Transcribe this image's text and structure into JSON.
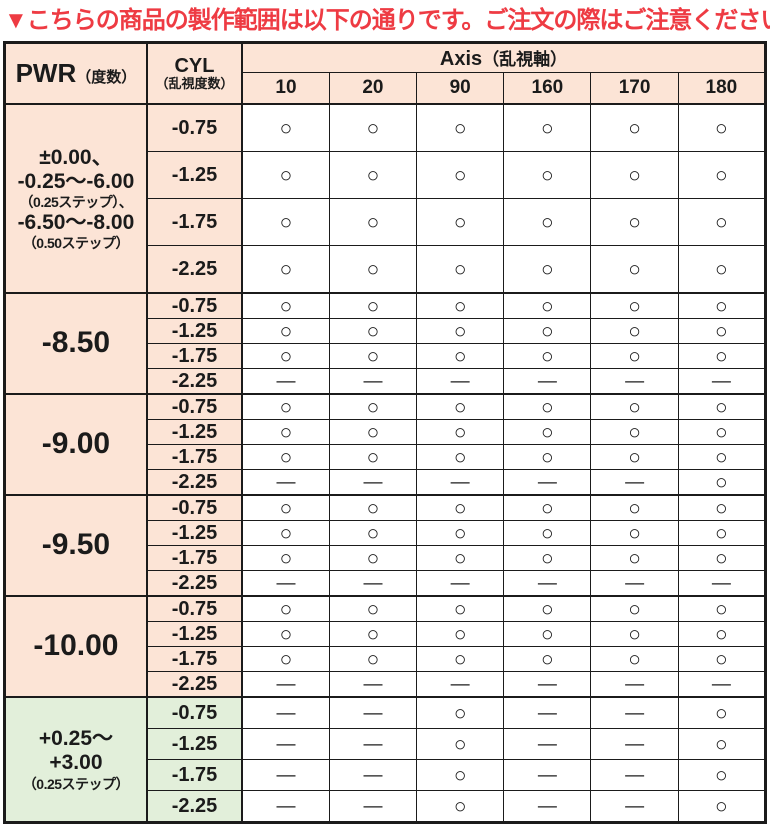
{
  "title": {
    "text": "▼こちらの商品の製作範囲は以下の通りです。ご注文の際はご注意ください。▼"
  },
  "colors": {
    "accent_red": "#ee3b43",
    "header_bg": "#fce4d6",
    "plus_range_bg": "#e2efda",
    "grid": "#1b1b1b"
  },
  "header": {
    "pwr_main": "PWR",
    "pwr_sub": "（度数）",
    "cyl_main": "CYL",
    "cyl_sub": "（乱視度数）",
    "axis_main": "Axis",
    "axis_sub": "（乱視軸）",
    "axis_values": [
      "10",
      "20",
      "90",
      "160",
      "170",
      "180"
    ]
  },
  "legend": {
    "available_symbol": "○",
    "unavailable_symbol": "—"
  },
  "sections": [
    {
      "theme": "peach",
      "size": "tall",
      "big": false,
      "pwr_lines": [
        {
          "text": "±0.00、",
          "small": false
        },
        {
          "text": "-0.25～-6.00",
          "small": false
        },
        {
          "text": "（0.25ステップ）、",
          "small": true
        },
        {
          "text": "-6.50～-8.00",
          "small": false
        },
        {
          "text": "（0.50ステップ）",
          "small": true
        }
      ],
      "rows": [
        {
          "cyl": "-0.75",
          "axes": [
            "○",
            "○",
            "○",
            "○",
            "○",
            "○"
          ]
        },
        {
          "cyl": "-1.25",
          "axes": [
            "○",
            "○",
            "○",
            "○",
            "○",
            "○"
          ]
        },
        {
          "cyl": "-1.75",
          "axes": [
            "○",
            "○",
            "○",
            "○",
            "○",
            "○"
          ]
        },
        {
          "cyl": "-2.25",
          "axes": [
            "○",
            "○",
            "○",
            "○",
            "○",
            "○"
          ]
        }
      ]
    },
    {
      "theme": "peach",
      "size": "compact",
      "big": true,
      "pwr_lines": [
        {
          "text": "-8.50",
          "small": false
        }
      ],
      "rows": [
        {
          "cyl": "-0.75",
          "axes": [
            "○",
            "○",
            "○",
            "○",
            "○",
            "○"
          ]
        },
        {
          "cyl": "-1.25",
          "axes": [
            "○",
            "○",
            "○",
            "○",
            "○",
            "○"
          ]
        },
        {
          "cyl": "-1.75",
          "axes": [
            "○",
            "○",
            "○",
            "○",
            "○",
            "○"
          ]
        },
        {
          "cyl": "-2.25",
          "axes": [
            "—",
            "—",
            "—",
            "—",
            "—",
            "—"
          ]
        }
      ]
    },
    {
      "theme": "peach",
      "size": "compact",
      "big": true,
      "pwr_lines": [
        {
          "text": "-9.00",
          "small": false
        }
      ],
      "rows": [
        {
          "cyl": "-0.75",
          "axes": [
            "○",
            "○",
            "○",
            "○",
            "○",
            "○"
          ]
        },
        {
          "cyl": "-1.25",
          "axes": [
            "○",
            "○",
            "○",
            "○",
            "○",
            "○"
          ]
        },
        {
          "cyl": "-1.75",
          "axes": [
            "○",
            "○",
            "○",
            "○",
            "○",
            "○"
          ]
        },
        {
          "cyl": "-2.25",
          "axes": [
            "—",
            "—",
            "—",
            "—",
            "—",
            "○"
          ]
        }
      ]
    },
    {
      "theme": "peach",
      "size": "compact",
      "big": true,
      "pwr_lines": [
        {
          "text": "-9.50",
          "small": false
        }
      ],
      "rows": [
        {
          "cyl": "-0.75",
          "axes": [
            "○",
            "○",
            "○",
            "○",
            "○",
            "○"
          ]
        },
        {
          "cyl": "-1.25",
          "axes": [
            "○",
            "○",
            "○",
            "○",
            "○",
            "○"
          ]
        },
        {
          "cyl": "-1.75",
          "axes": [
            "○",
            "○",
            "○",
            "○",
            "○",
            "○"
          ]
        },
        {
          "cyl": "-2.25",
          "axes": [
            "—",
            "—",
            "—",
            "—",
            "—",
            "—"
          ]
        }
      ]
    },
    {
      "theme": "peach",
      "size": "compact",
      "big": true,
      "pwr_lines": [
        {
          "text": "-10.00",
          "small": false
        }
      ],
      "rows": [
        {
          "cyl": "-0.75",
          "axes": [
            "○",
            "○",
            "○",
            "○",
            "○",
            "○"
          ]
        },
        {
          "cyl": "-1.25",
          "axes": [
            "○",
            "○",
            "○",
            "○",
            "○",
            "○"
          ]
        },
        {
          "cyl": "-1.75",
          "axes": [
            "○",
            "○",
            "○",
            "○",
            "○",
            "○"
          ]
        },
        {
          "cyl": "-2.25",
          "axes": [
            "—",
            "—",
            "—",
            "—",
            "—",
            "—"
          ]
        }
      ]
    },
    {
      "theme": "green",
      "size": "medium",
      "big": false,
      "pwr_lines": [
        {
          "text": "+0.25～",
          "small": false
        },
        {
          "text": "+3.00",
          "small": false
        },
        {
          "text": "（0.25ステップ）",
          "small": true
        }
      ],
      "rows": [
        {
          "cyl": "-0.75",
          "axes": [
            "—",
            "—",
            "○",
            "—",
            "—",
            "○"
          ]
        },
        {
          "cyl": "-1.25",
          "axes": [
            "—",
            "—",
            "○",
            "—",
            "—",
            "○"
          ]
        },
        {
          "cyl": "-1.75",
          "axes": [
            "—",
            "—",
            "○",
            "—",
            "—",
            "○"
          ]
        },
        {
          "cyl": "-2.25",
          "axes": [
            "—",
            "—",
            "○",
            "—",
            "—",
            "○"
          ]
        }
      ]
    }
  ]
}
